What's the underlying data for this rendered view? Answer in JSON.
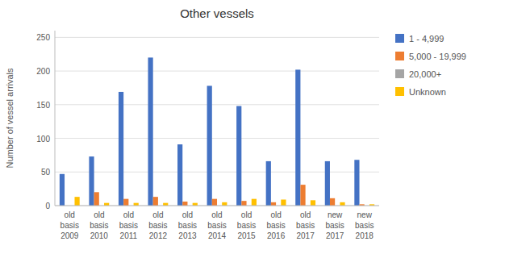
{
  "chart_data": {
    "type": "bar",
    "title": "Other vessels",
    "y_label": "Number of vessel arrivals",
    "categories": [
      "old\nbasis\n2009",
      "old\nbasis\n2010",
      "old\nbasis\n2011",
      "old\nbasis\n2012",
      "old\nbasis\n2013",
      "old\nbasis\n2014",
      "old\nbasis\n2015",
      "old\nbasis\n2016",
      "old\nbasis\n2017",
      "new\nbasis\n2017",
      "new\nbasis\n2018"
    ],
    "series": [
      {
        "name": "1 - 4,999",
        "color": "#4472C4",
        "values": [
          47,
          73,
          169,
          220,
          91,
          178,
          148,
          66,
          202,
          66,
          68
        ]
      },
      {
        "name": "5,000 - 19,999",
        "color": "#ED7D31",
        "values": [
          0,
          20,
          10,
          13,
          6,
          10,
          7,
          5,
          31,
          11,
          2
        ]
      },
      {
        "name": "20,000+",
        "color": "#A5A5A5",
        "values": [
          0,
          0,
          0,
          0,
          0,
          0,
          0,
          0,
          0,
          0,
          0
        ]
      },
      {
        "name": "Unknown",
        "color": "#FFC000",
        "values": [
          13,
          4,
          4,
          4,
          4,
          5,
          10,
          9,
          8,
          5,
          2
        ]
      }
    ],
    "ylim": [
      0,
      260
    ],
    "yticks": [
      0,
      50,
      100,
      150,
      200,
      250
    ],
    "grid": true,
    "legend": "right"
  }
}
